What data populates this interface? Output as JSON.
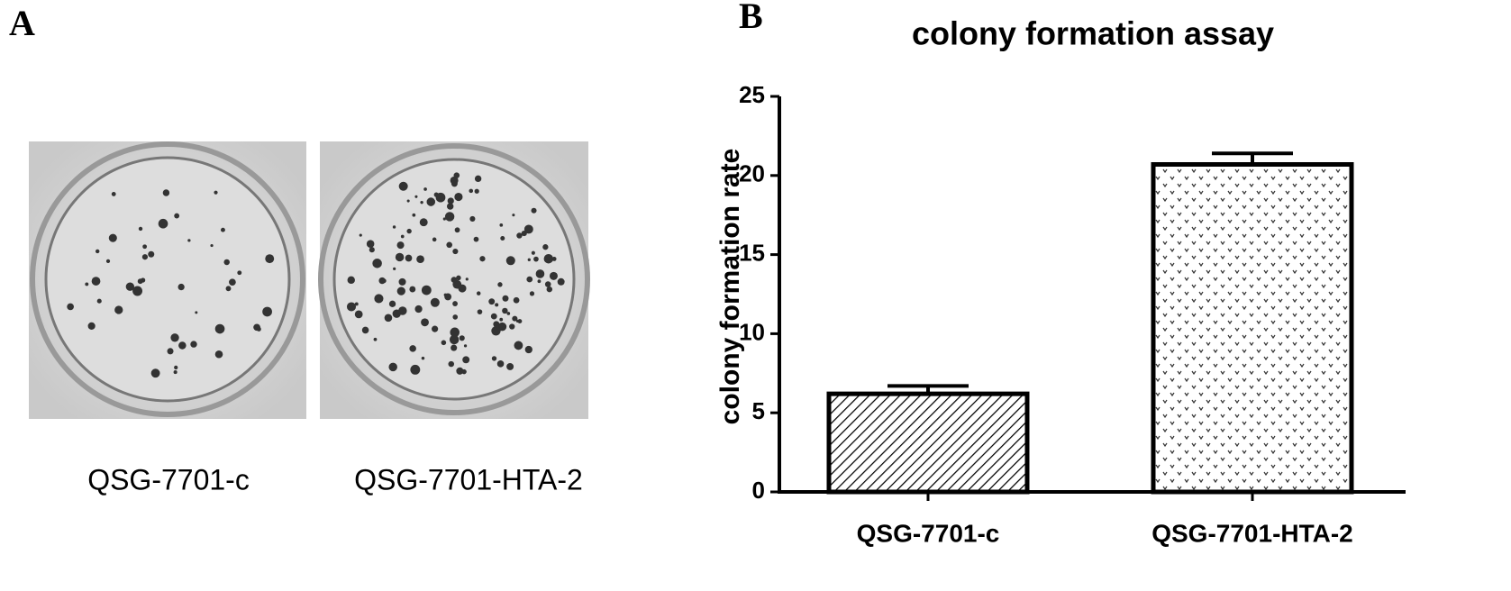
{
  "panel_a": {
    "label": "A",
    "captions": [
      "QSG-7701-c",
      "QSG-7701-HTA-2"
    ]
  },
  "chart_data": {
    "type": "bar",
    "panel_label": "B",
    "title": "colony formation assay",
    "y_label": "colony formation rate",
    "categories": [
      "QSG-7701-c",
      "QSG-7701-HTA-2"
    ],
    "values": [
      6.2,
      20.7
    ],
    "errors": [
      0.5,
      0.7
    ],
    "color": "#000000",
    "ylim": [
      0,
      25
    ],
    "yticks": [
      0,
      5,
      10,
      15,
      20,
      25
    ],
    "grid": false
  }
}
